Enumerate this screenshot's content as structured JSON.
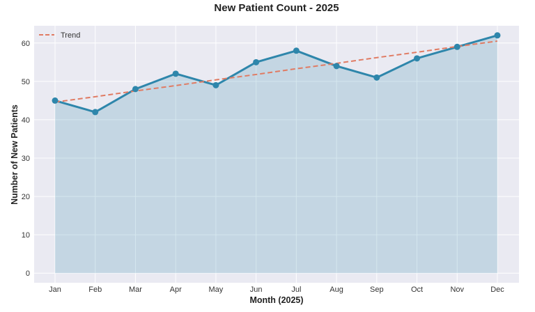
{
  "chart_data": {
    "type": "line",
    "title": "New Patient Count - 2025",
    "xlabel": "Month (2025)",
    "ylabel": "Number of New Patients",
    "categories": [
      "Jan",
      "Feb",
      "Mar",
      "Apr",
      "May",
      "Jun",
      "Jul",
      "Aug",
      "Sep",
      "Oct",
      "Nov",
      "Dec"
    ],
    "series": [
      {
        "values": [
          45,
          42,
          48,
          52,
          49,
          55,
          58,
          54,
          51,
          56,
          59,
          62
        ],
        "color": "#2e86ab",
        "fill": "area"
      },
      {
        "name": "Trend",
        "values": [
          44.6,
          46.0,
          47.5,
          48.9,
          50.4,
          51.8,
          53.3,
          54.7,
          56.2,
          57.6,
          59.1,
          60.5
        ],
        "color": "#e07b63",
        "style": "dashed"
      }
    ],
    "ylim": [
      -2.5,
      64.5
    ],
    "yticks": [
      0,
      10,
      20,
      30,
      40,
      50,
      60
    ],
    "grid": true,
    "legend": "top-left",
    "background": "#eaeaf2"
  }
}
